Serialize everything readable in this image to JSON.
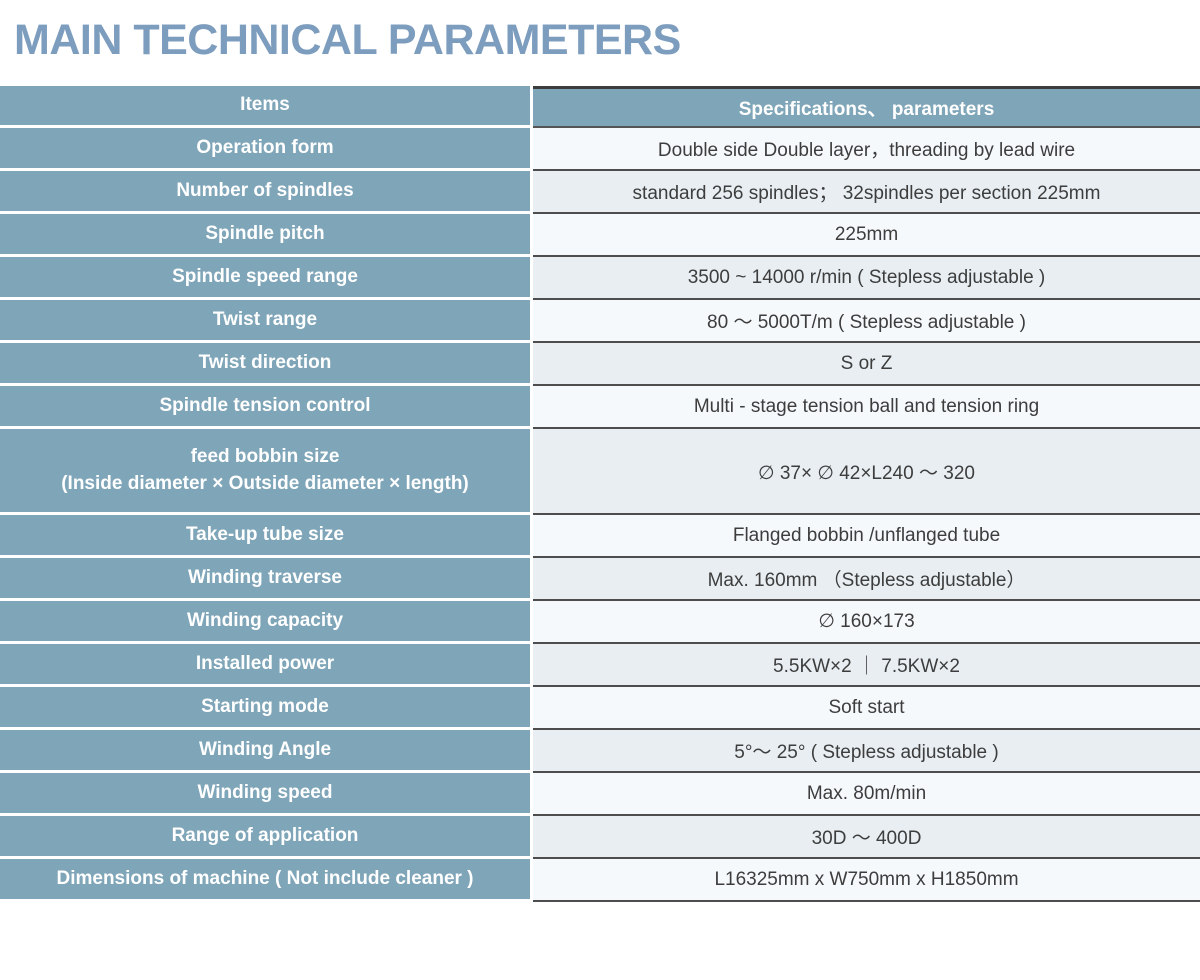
{
  "page": {
    "title": "MAIN TECHNICAL PARAMETERS"
  },
  "colors": {
    "title_text": "#7d9dbe",
    "cell_blue": "#7fa5b8",
    "value_row_light": "#f6f9fc",
    "value_row_shaded": "#e8eef2",
    "value_text": "#3d3d3d",
    "dark_border": "#4d4d4d",
    "white_divider": "#ffffff"
  },
  "table": {
    "header": {
      "items": "Items",
      "specs": "Specifications、 parameters"
    },
    "rows": [
      {
        "item": "Operation form",
        "value": "Double side Double layer，threading by lead wire"
      },
      {
        "item": "Number of spindles",
        "value": "standard 256 spindles； 32spindles per section 225mm"
      },
      {
        "item": "Spindle pitch",
        "value": "225mm"
      },
      {
        "item": "Spindle speed range",
        "value": "3500 ~ 14000 r/min ( Stepless adjustable )"
      },
      {
        "item": "Twist range",
        "value": "80 ～ 5000T/m ( Stepless adjustable )"
      },
      {
        "item": "Twist direction",
        "value": "S or Z"
      },
      {
        "item": "Spindle tension control",
        "value": "Multi - stage tension ball and tension ring"
      },
      {
        "item": "feed bobbin size",
        "item_line2": "(Inside diameter × Outside diameter × length)",
        "value": "∅ 37× ∅ 42×L240 ～ 320",
        "tall": true
      },
      {
        "item": "Take-up tube size",
        "value": "Flanged bobbin /unflanged tube"
      },
      {
        "item": "Winding traverse",
        "value": "Max. 160mm （Stepless adjustable）"
      },
      {
        "item": "Winding capacity",
        "value": "∅ 160×173"
      },
      {
        "item": "Installed power",
        "value": "5.5KW×2 ｜ 7.5KW×2"
      },
      {
        "item": "Starting mode",
        "value": "Soft start"
      },
      {
        "item": "Winding Angle",
        "value": "5°～ 25° ( Stepless adjustable )"
      },
      {
        "item": "Winding speed",
        "value": "Max. 80m/min"
      },
      {
        "item": "Range of application",
        "value": "30D ～ 400D"
      },
      {
        "item": "Dimensions of machine ( Not include cleaner )",
        "value": "L16325mm x W750mm x H1850mm"
      }
    ]
  }
}
